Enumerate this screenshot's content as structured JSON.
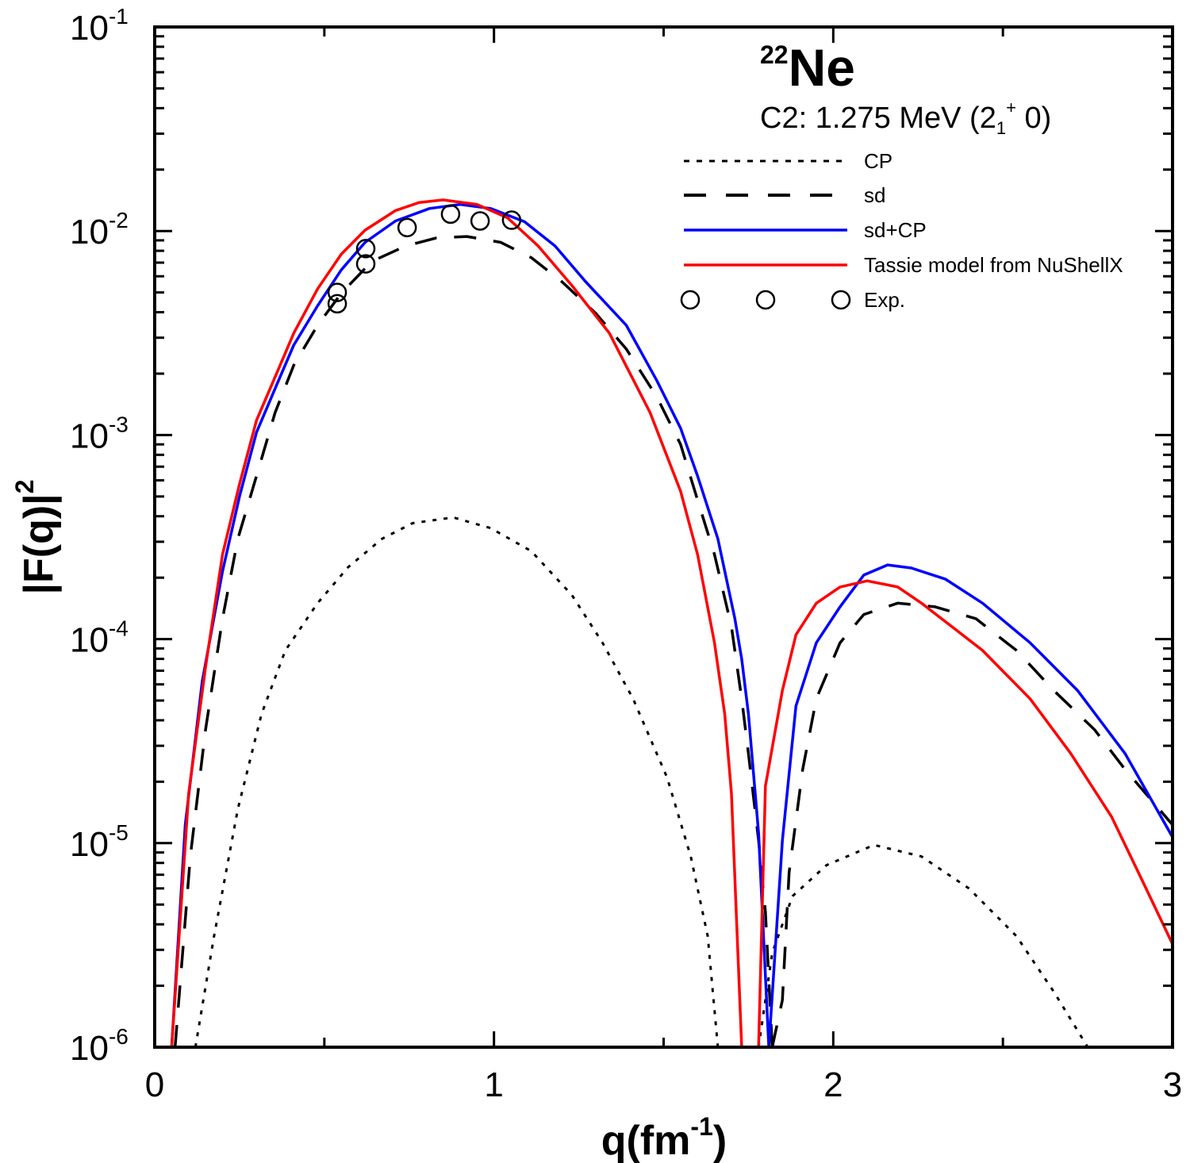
{
  "chart_data": {
    "type": "line",
    "title": {
      "superscript": "22",
      "main": "Ne"
    },
    "subtitle": {
      "prefix": "C2:  1.275 MeV (2",
      "subscript": "1",
      "superscript": "+",
      "suffix": " 0)"
    },
    "xlabel": {
      "main": "q(fm",
      "superscript": "-1",
      "suffix": ")"
    },
    "ylabel": {
      "main": "|F(q)|",
      "superscript": "2"
    },
    "xlim": [
      0,
      3
    ],
    "ylim": [
      1e-06,
      0.1
    ],
    "yscale": "log",
    "grid": false,
    "legend_position": "top-right",
    "x_ticks": [
      {
        "value": 0,
        "label": "0"
      },
      {
        "value": 1,
        "label": "1"
      },
      {
        "value": 2,
        "label": "2"
      },
      {
        "value": 3,
        "label": "3"
      }
    ],
    "y_ticks": [
      {
        "value": 0.1,
        "base": "10",
        "exp": "-1"
      },
      {
        "value": 0.01,
        "base": "10",
        "exp": "-2"
      },
      {
        "value": 0.001,
        "base": "10",
        "exp": "-3"
      },
      {
        "value": 0.0001,
        "base": "10",
        "exp": "-4"
      },
      {
        "value": 1e-05,
        "base": "10",
        "exp": "-5"
      },
      {
        "value": 1e-06,
        "base": "10",
        "exp": "-6"
      }
    ],
    "series": [
      {
        "name": "CP",
        "style": "dotted",
        "color": "#000000",
        "segments": [
          {
            "x": [
              0.12,
              0.175,
              0.245,
              0.315,
              0.385,
              0.48,
              0.57,
              0.67,
              0.76,
              0.88,
              0.99,
              1.11,
              1.23,
              1.32,
              1.41,
              1.51,
              1.58,
              1.63,
              1.66
            ],
            "y": [
              1e-06,
              3.5e-06,
              1.47e-05,
              4.3e-05,
              8.8e-05,
              0.00015,
              0.000225,
              0.00031,
              0.00037,
              0.000395,
              0.00035,
              0.00027,
              0.000164,
              9.6e-05,
              5.1e-05,
              2.1e-05,
              8.6e-06,
              3.5e-06,
              1e-06
            ]
          },
          {
            "x": [
              1.78,
              1.82,
              1.88,
              1.98,
              2.12,
              2.26,
              2.4,
              2.54,
              2.65,
              2.75
            ],
            "y": [
              1e-06,
              2.9e-06,
              5.5e-06,
              7.8e-06,
              9.8e-06,
              8.6e-06,
              6e-06,
              3.5e-06,
              1.87e-06,
              1e-06
            ]
          }
        ]
      },
      {
        "name": "sd",
        "style": "dashed",
        "color": "#000000",
        "segments": [
          {
            "x": [
              0.06,
              0.105,
              0.15,
              0.2,
              0.245,
              0.3,
              0.355,
              0.41,
              0.48,
              0.55,
              0.64,
              0.74,
              0.83,
              0.92,
              1.02,
              1.11,
              1.2,
              1.3,
              1.39,
              1.48,
              1.55,
              1.6,
              1.65,
              1.7,
              1.73,
              1.75,
              1.78,
              1.8,
              1.82
            ],
            "y": [
              1e-06,
              8.6e-06,
              3.6e-05,
              0.000126,
              0.00031,
              0.00063,
              0.00129,
              0.0022,
              0.00345,
              0.00495,
              0.0071,
              0.00845,
              0.00925,
              0.0094,
              0.0088,
              0.0074,
              0.00565,
              0.00395,
              0.00264,
              0.00154,
              0.0009,
              0.00048,
              0.00026,
              0.000115,
              5.1e-05,
              2.75e-05,
              1.03e-05,
              4.6e-06,
              1e-06
            ]
          },
          {
            "x": [
              1.82,
              1.85,
              1.87,
              1.91,
              1.95,
              2.02,
              2.09,
              2.19,
              2.3,
              2.42,
              2.54,
              2.65,
              2.77,
              2.86,
              3.0
            ],
            "y": [
              1e-06,
              1.7e-06,
              7.2e-06,
              2.3e-05,
              5.1e-05,
              9.6e-05,
              0.000132,
              0.00015,
              0.000144,
              0.000126,
              8.8e-05,
              5.6e-05,
              3.6e-05,
              2.3e-05,
              1.23e-05
            ]
          }
        ]
      },
      {
        "name": "sd+CP",
        "style": "solid",
        "color": "#0000ff",
        "segments": [
          {
            "x": [
              0.05,
              0.09,
              0.14,
              0.2,
              0.25,
              0.3,
              0.36,
              0.41,
              0.48,
              0.55,
              0.62,
              0.71,
              0.81,
              0.9,
              0.99,
              1.09,
              1.18,
              1.27,
              1.39,
              1.48,
              1.55,
              1.6,
              1.66,
              1.71,
              1.73,
              1.75,
              1.78,
              1.81,
              1.85,
              1.89,
              1.95,
              2.02,
              2.09,
              2.16,
              2.23,
              2.33,
              2.44,
              2.58,
              2.72,
              2.86,
              3.0
            ],
            "y": [
              1e-06,
              1.23e-05,
              6.2e-05,
              0.000215,
              0.0005,
              0.00103,
              0.00177,
              0.00276,
              0.0043,
              0.00645,
              0.0088,
              0.0112,
              0.0129,
              0.0135,
              0.0129,
              0.0111,
              0.00845,
              0.00565,
              0.00345,
              0.00185,
              0.00108,
              0.00063,
              0.00031,
              0.000126,
              8e-05,
              4.3e-05,
              1.12e-05,
              1e-06,
              1.03e-05,
              4.7e-05,
              9.6e-05,
              0.000144,
              0.000206,
              0.000231,
              0.000223,
              0.000197,
              0.00015,
              9.6e-05,
              5.6e-05,
              2.75e-05,
              1.07e-05
            ]
          }
        ]
      },
      {
        "name": "Tassie model from NuShellX",
        "style": "solid",
        "color": "#ff0000",
        "segments": [
          {
            "x": [
              0.05,
              0.1,
              0.15,
              0.2,
              0.25,
              0.3,
              0.36,
              0.41,
              0.48,
              0.55,
              0.62,
              0.71,
              0.78,
              0.85,
              0.95,
              1.04,
              1.13,
              1.23,
              1.34,
              1.46,
              1.55,
              1.6,
              1.65,
              1.68,
              1.7,
              1.73,
              1.78,
              1.8,
              1.85,
              1.89,
              1.95,
              2.02,
              2.1,
              2.19,
              2.26,
              2.35,
              2.44,
              2.58,
              2.7,
              2.82,
              2.91,
              3.0
            ],
            "y": [
              1e-06,
              1.75e-05,
              7.3e-05,
              0.00026,
              0.000575,
              0.00118,
              0.00202,
              0.00316,
              0.0052,
              0.0077,
              0.0101,
              0.0126,
              0.0138,
              0.0142,
              0.0135,
              0.0116,
              0.00845,
              0.0054,
              0.00316,
              0.00129,
              0.00053,
              0.00026,
              9.6e-05,
              4.3e-05,
              1.75e-05,
              1e-06,
              1e-06,
              1.9e-05,
              5.6e-05,
              0.000105,
              0.00015,
              0.00018,
              0.000193,
              0.00018,
              0.00015,
              0.000115,
              8.8e-05,
              5.1e-05,
              2.75e-05,
              1.35e-05,
              6.6e-06,
              3.2e-06
            ]
          }
        ]
      },
      {
        "name": "Exp.",
        "style": "markers",
        "color": "#000000",
        "marker": "open-circle",
        "x": [
          0.538,
          0.538,
          0.622,
          0.622,
          0.744,
          0.872,
          0.959,
          1.052
        ],
        "y": [
          0.005,
          0.0044,
          0.0082,
          0.0069,
          0.0104,
          0.0121,
          0.0112,
          0.0113
        ]
      }
    ]
  }
}
